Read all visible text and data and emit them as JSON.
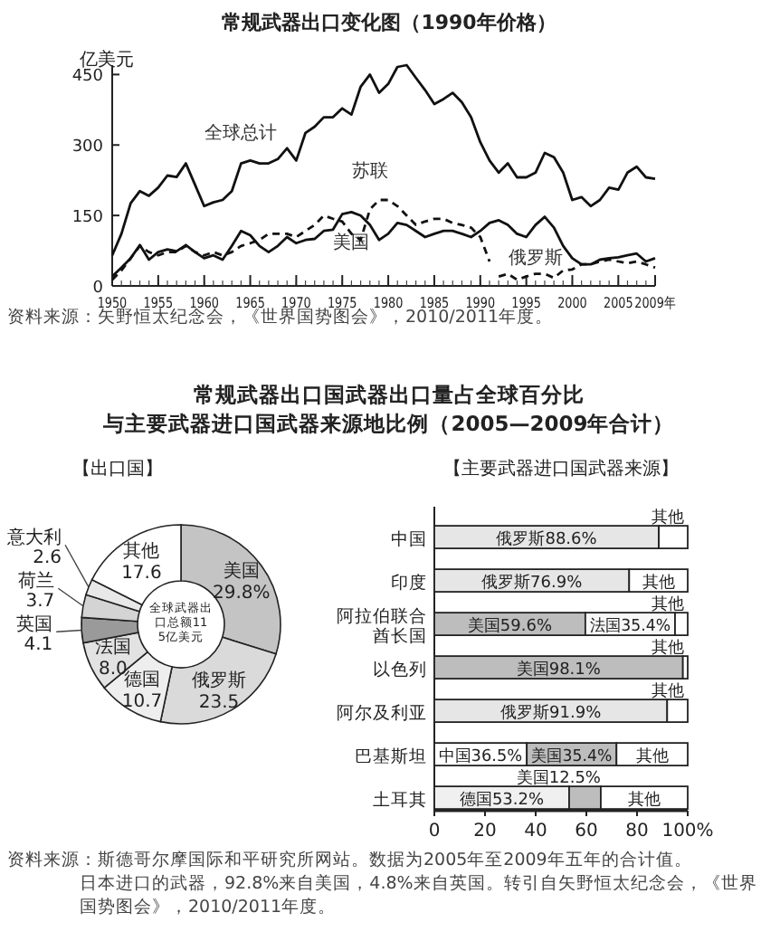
{
  "chart_data": [
    {
      "type": "line",
      "title": "常规武器出口变化图（1990年价格）",
      "ylabel": "亿美元",
      "xlim": [
        1950,
        2009
      ],
      "xticks": [
        1950,
        1955,
        1960,
        1965,
        1970,
        1975,
        1980,
        1985,
        1990,
        1995,
        2000,
        2005,
        {
          "value": 2009,
          "label": "2009年"
        }
      ],
      "ylim": [
        0,
        470
      ],
      "yticks": [
        0,
        150,
        300,
        450
      ],
      "grid": false,
      "legend": false,
      "marker": "none",
      "series": [
        {
          "name": "全球总计",
          "color": "#111111",
          "line_style": "solid",
          "x": [
            1950,
            1951,
            1952,
            1953,
            1954,
            1955,
            1956,
            1957,
            1958,
            1959,
            1960,
            1961,
            1962,
            1963,
            1964,
            1965,
            1966,
            1967,
            1968,
            1969,
            1970,
            1971,
            1972,
            1973,
            1974,
            1975,
            1976,
            1977,
            1978,
            1979,
            1980,
            1981,
            1982,
            1983,
            1984,
            1985,
            1986,
            1987,
            1988,
            1989,
            1990,
            1991,
            1992,
            1993,
            1994,
            1995,
            1996,
            1997,
            1998,
            1999,
            2000,
            2001,
            2002,
            2003,
            2004,
            2005,
            2006,
            2007,
            2008,
            2009
          ],
          "values": [
            65,
            111,
            176,
            202,
            192,
            209,
            235,
            232,
            261,
            215,
            170,
            178,
            183,
            202,
            261,
            267,
            261,
            261,
            270,
            293,
            267,
            326,
            339,
            359,
            359,
            378,
            365,
            424,
            450,
            411,
            430,
            466,
            470,
            443,
            417,
            387,
            398,
            411,
            391,
            359,
            306,
            267,
            241,
            261,
            231,
            231,
            241,
            283,
            274,
            241,
            183,
            189,
            170,
            183,
            209,
            205,
            241,
            254,
            231,
            228
          ]
        },
        {
          "name": "美国",
          "color": "#111111",
          "line_style": "solid",
          "x": [
            1950,
            1951,
            1952,
            1953,
            1954,
            1955,
            1956,
            1957,
            1958,
            1959,
            1960,
            1961,
            1962,
            1963,
            1964,
            1965,
            1966,
            1967,
            1968,
            1969,
            1970,
            1971,
            1972,
            1973,
            1974,
            1975,
            1976,
            1977,
            1978,
            1979,
            1980,
            1981,
            1982,
            1983,
            1984,
            1985,
            1986,
            1987,
            1988,
            1989,
            1990,
            1991,
            1992,
            1993,
            1994,
            1995,
            1996,
            1997,
            1998,
            1999,
            2000,
            2001,
            2002,
            2003,
            2004,
            2005,
            2006,
            2007,
            2008,
            2009
          ],
          "values": [
            20,
            39,
            59,
            87,
            56,
            72,
            78,
            74,
            87,
            72,
            59,
            65,
            56,
            85,
            117,
            108,
            85,
            72,
            85,
            104,
            91,
            98,
            100,
            117,
            120,
            153,
            157,
            150,
            130,
            98,
            111,
            134,
            130,
            117,
            104,
            111,
            117,
            117,
            111,
            104,
            117,
            134,
            140,
            130,
            111,
            104,
            130,
            147,
            124,
            85,
            59,
            46,
            46,
            56,
            59,
            61,
            65,
            69,
            52,
            59
          ]
        },
        {
          "name": "苏联",
          "color": "#111111",
          "line_style": "dashed",
          "x": [
            1950,
            1951,
            1952,
            1953,
            1954,
            1955,
            1956,
            1957,
            1958,
            1959,
            1960,
            1961,
            1962,
            1963,
            1964,
            1965,
            1966,
            1967,
            1968,
            1969,
            1970,
            1971,
            1972,
            1973,
            1974,
            1975,
            1976,
            1977,
            1978,
            1979,
            1980,
            1981,
            1982,
            1983,
            1984,
            1985,
            1986,
            1987,
            1988,
            1989,
            1990,
            1991
          ],
          "values": [
            13,
            33,
            59,
            85,
            72,
            65,
            72,
            72,
            85,
            72,
            65,
            72,
            65,
            72,
            85,
            91,
            98,
            111,
            111,
            111,
            104,
            117,
            130,
            150,
            143,
            137,
            111,
            98,
            163,
            183,
            183,
            170,
            150,
            130,
            137,
            143,
            143,
            134,
            130,
            124,
            104,
            52
          ]
        },
        {
          "name": "俄罗斯",
          "color": "#111111",
          "line_style": "dashed",
          "x": [
            1992,
            1993,
            1994,
            1995,
            1996,
            1997,
            1998,
            1999,
            2000,
            2001,
            2002,
            2003,
            2004,
            2005,
            2006,
            2007,
            2008,
            2009
          ],
          "values": [
            20,
            26,
            13,
            20,
            26,
            26,
            17,
            33,
            35,
            46,
            46,
            52,
            56,
            52,
            48,
            52,
            46,
            39
          ]
        }
      ],
      "annotations": [
        "资料来源：矢野恒太纪念会，《世界国势图会》，2010/2011年度。"
      ]
    },
    {
      "type": "donut",
      "title": "常规武器出口国武器出口量占全球百分比",
      "subtitle": "与主要武器进口国武器来源地比例（2005—2009年合计）",
      "categories": [
        "美国",
        "俄罗斯",
        "德国",
        "法国",
        "英国",
        "荷兰",
        "意大利",
        "其他"
      ],
      "values": [
        29.8,
        23.5,
        10.7,
        8.0,
        4.1,
        3.7,
        2.6,
        17.6
      ],
      "value_labels": [
        "29.8%",
        "23.5",
        "10.7",
        "8.0",
        "4.1",
        "3.7",
        "2.6",
        "17.6"
      ],
      "colors": [
        "#c4c4c4",
        "#dadada",
        "#eeeeee",
        "#e2e2e2",
        "#9a9a9a",
        "#d4d4d4",
        "#e8e8e8",
        "#ffffff"
      ],
      "annotations": [
        "【出口国】",
        "全球武器出口总额115亿美元"
      ]
    },
    {
      "type": "bar",
      "orientation": "horizontal",
      "stacked": true,
      "subtitle": "【主要武器进口国武器来源】",
      "categories": [
        "中国",
        "印度",
        "阿拉伯联合酋长国",
        "以色列",
        "阿尔及利亚",
        "巴基斯坦",
        "土耳其"
      ],
      "xlim": [
        0,
        100
      ],
      "xticks": [
        0,
        20,
        40,
        60,
        80,
        {
          "value": 100,
          "label": "100%"
        }
      ],
      "grid": false,
      "legend": false,
      "series": [
        {
          "name": "中国",
          "color": "#ffffff",
          "values": [
            null,
            null,
            null,
            null,
            null,
            36.5,
            null
          ],
          "value_labels": [
            null,
            null,
            null,
            null,
            null,
            "36.5%",
            null
          ]
        },
        {
          "name": "俄罗斯",
          "color": "#e6e6e6",
          "values": [
            88.6,
            76.9,
            null,
            null,
            91.9,
            null,
            null
          ],
          "value_labels": [
            "88.6%",
            "76.9%",
            null,
            null,
            "91.9%",
            null,
            null
          ]
        },
        {
          "name": "德国",
          "color": "#f0f0f0",
          "values": [
            null,
            null,
            null,
            null,
            null,
            null,
            53.2
          ],
          "value_labels": [
            null,
            null,
            null,
            null,
            null,
            null,
            "53.2%"
          ]
        },
        {
          "name": "美国",
          "color": "#bdbdbd",
          "values": [
            null,
            null,
            59.6,
            98.1,
            null,
            35.4,
            12.5
          ],
          "value_labels": [
            null,
            null,
            "59.6%",
            "98.1%",
            null,
            "35.4%",
            "12.5%"
          ]
        },
        {
          "name": "法国",
          "color": "#f7f7f7",
          "values": [
            null,
            null,
            35.4,
            null,
            null,
            null,
            null
          ],
          "value_labels": [
            null,
            null,
            "35.4%",
            null,
            null,
            null,
            null
          ]
        },
        {
          "name": "其他",
          "color": "#ffffff",
          "values": [
            11.4,
            23.1,
            5.0,
            1.9,
            8.1,
            28.1,
            34.3
          ]
        }
      ],
      "annotations": [
        "资料来源：斯德哥尔摩国际和平研究所网站。数据为2005年至2009年五年的合计值。日本进口的武器，92.8%来自美国，4.8%来自英国。转引自矢野恒太纪念会，《世界国势图会》，2010/2011年度。"
      ]
    }
  ]
}
